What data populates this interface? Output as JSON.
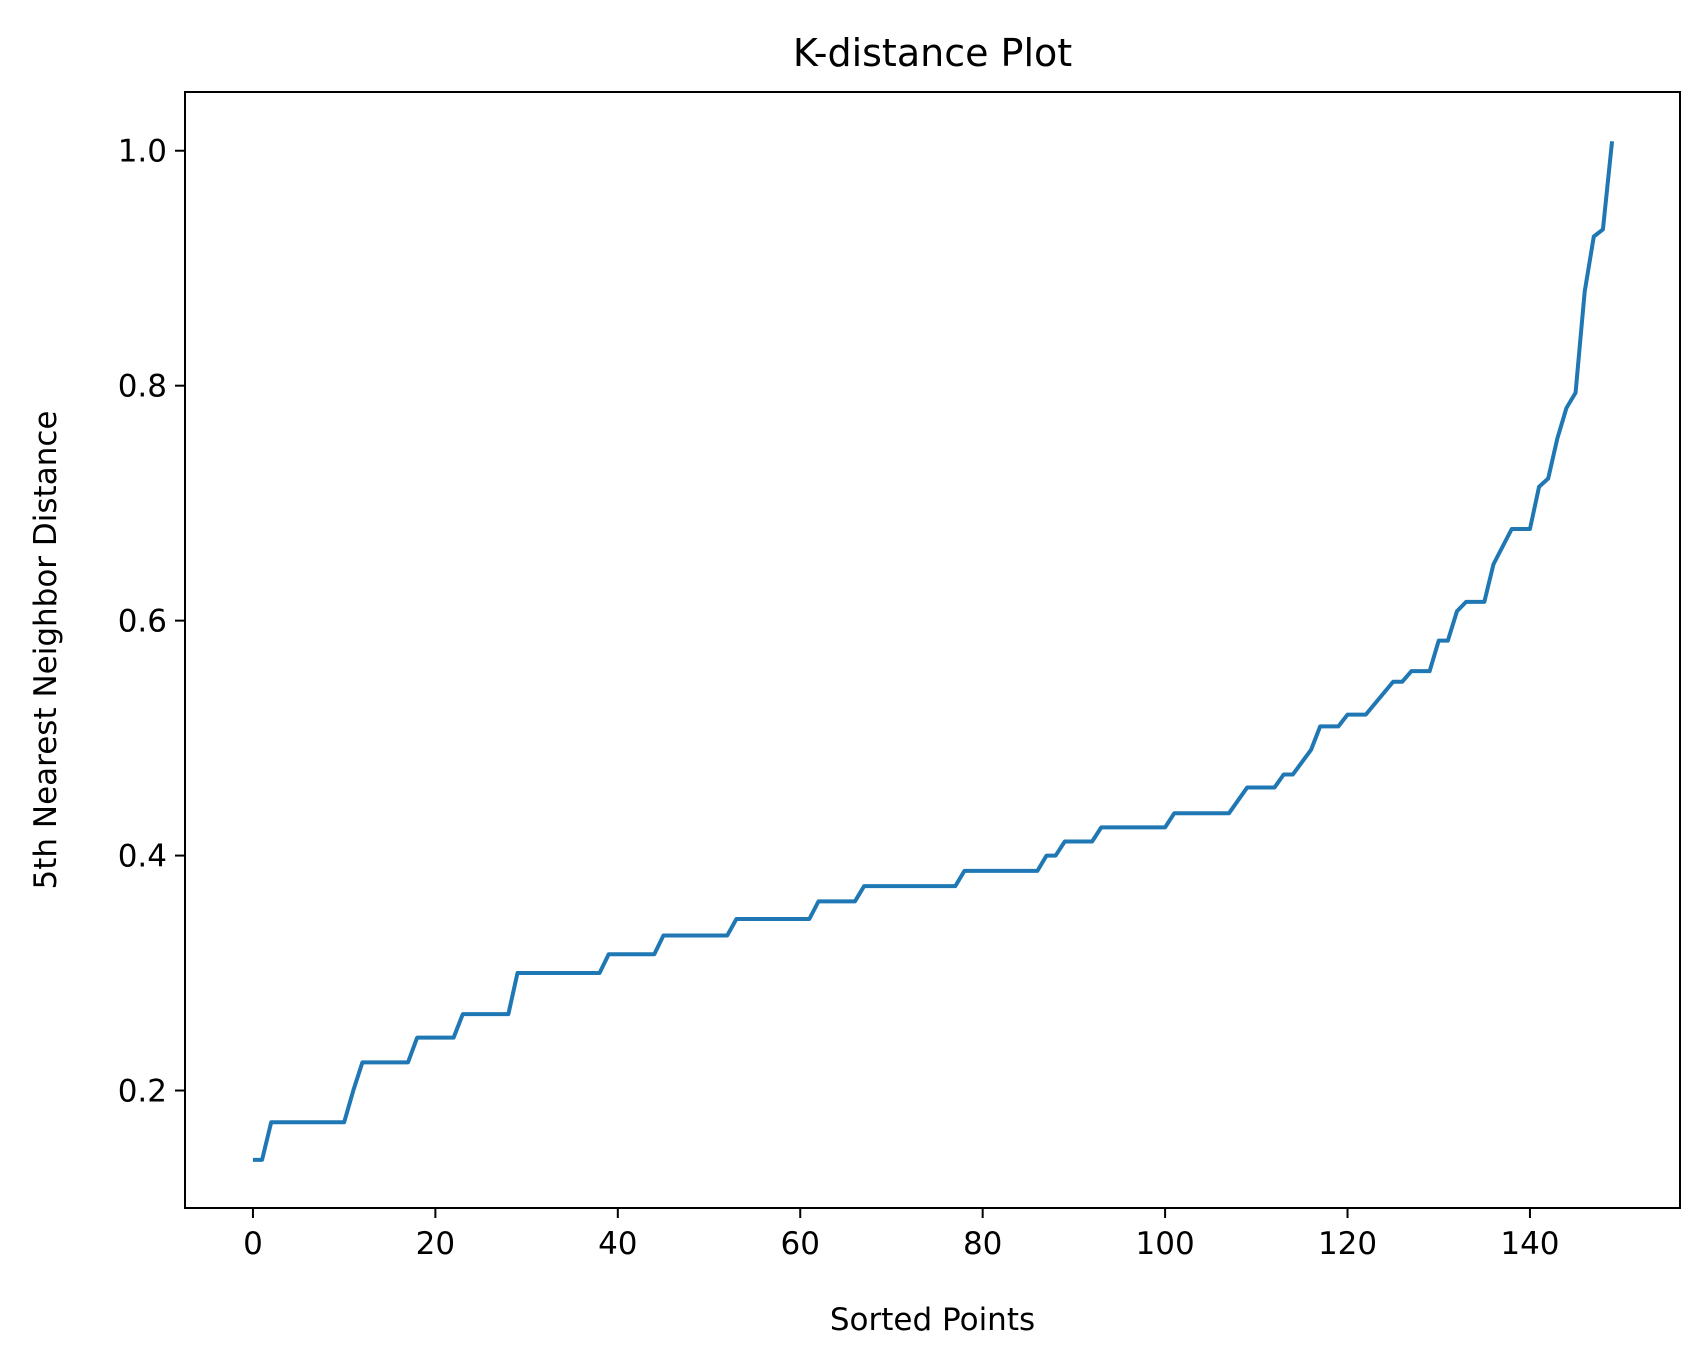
{
  "chart_data": {
    "type": "line",
    "title": "K-distance Plot",
    "xlabel": "Sorted Points",
    "ylabel": "5th Nearest Neighbor Distance",
    "xlim": [
      -7.45,
      156.45
    ],
    "ylim": [
      0.1,
      1.05
    ],
    "xticks": [
      0,
      20,
      40,
      60,
      80,
      100,
      120,
      140
    ],
    "yticks": [
      0.2,
      0.4,
      0.6,
      0.8,
      1.0
    ],
    "grid": false,
    "series_color": "#1f77b4",
    "series": [
      {
        "x": [
          0,
          1,
          2,
          10,
          11,
          12,
          17,
          18,
          22,
          23,
          28,
          29,
          38,
          39,
          44,
          45,
          52,
          53,
          61,
          62,
          66,
          67,
          77,
          78,
          86,
          87,
          88,
          89,
          92,
          93,
          100,
          101,
          107,
          109,
          112,
          113,
          114,
          116,
          117,
          119,
          120,
          122,
          125,
          126,
          127,
          129,
          130,
          131,
          132,
          133,
          135,
          136,
          138,
          140,
          141,
          142,
          143,
          144,
          145,
          146,
          147,
          148,
          149
        ],
        "y": [
          0.141,
          0.141,
          0.173,
          0.173,
          0.2,
          0.224,
          0.224,
          0.245,
          0.245,
          0.265,
          0.265,
          0.3,
          0.3,
          0.316,
          0.316,
          0.332,
          0.332,
          0.346,
          0.346,
          0.361,
          0.361,
          0.374,
          0.374,
          0.387,
          0.387,
          0.4,
          0.4,
          0.412,
          0.412,
          0.424,
          0.424,
          0.436,
          0.436,
          0.458,
          0.458,
          0.469,
          0.469,
          0.49,
          0.51,
          0.51,
          0.52,
          0.52,
          0.548,
          0.548,
          0.557,
          0.557,
          0.583,
          0.583,
          0.608,
          0.616,
          0.616,
          0.648,
          0.678,
          0.678,
          0.714,
          0.721,
          0.755,
          0.781,
          0.794,
          0.88,
          0.927,
          0.933,
          1.008
        ]
      }
    ]
  }
}
